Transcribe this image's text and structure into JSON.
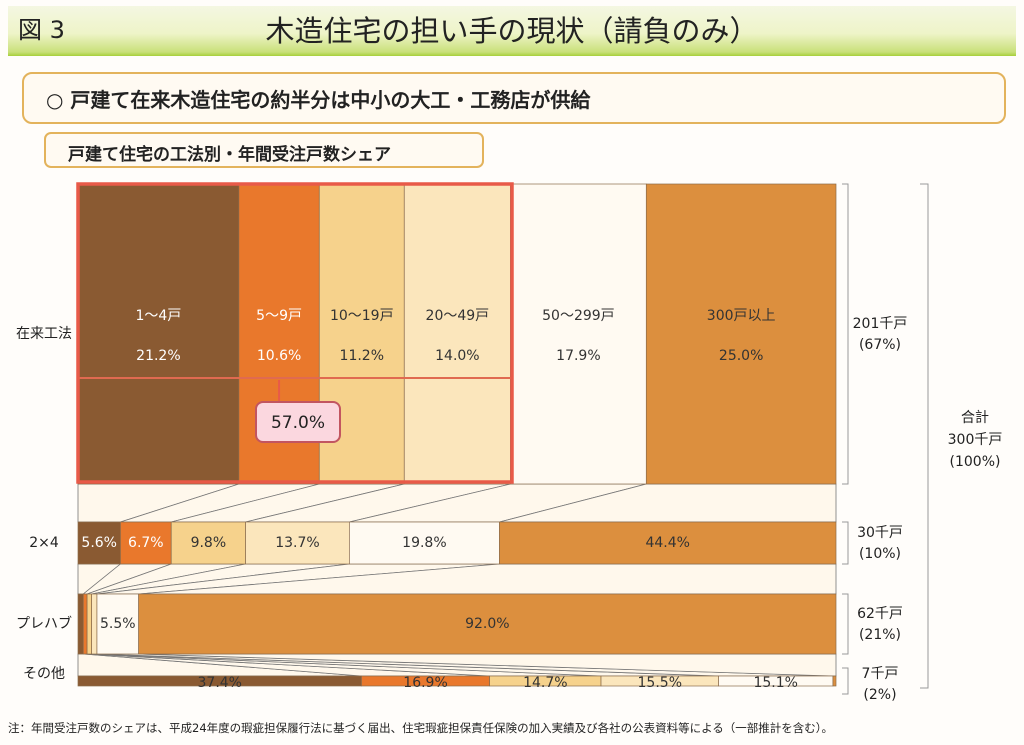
{
  "figure": {
    "number": "図 3",
    "title": "木造住宅の担い手の現状（請負のみ）",
    "headline": "○ 戸建て在来木造住宅の約半分は中小の大工・工務店が供給",
    "subtitle": "戸建て住宅の工法別・年間受注戸数シェア",
    "note": "注：年間受注戸数のシェアは、平成24年度の瑕疵担保履行法に基づく届出、住宅瑕疵担保責任保険の加入実績及び各社の公表資料等による（一部推計を含む）。"
  },
  "colors": {
    "c1": "#8a5a32",
    "c2": "#e9782c",
    "c3": "#f6d28c",
    "c4": "#fbe6bc",
    "c5": "#fffaf2",
    "c6": "#dc8f3e",
    "highlight": "#e85a48"
  },
  "chart_data": {
    "type": "bar",
    "stacked": "100% horizontal",
    "categories": [
      "在来工法",
      "2×4",
      "プレハブ",
      "その他"
    ],
    "series": [
      {
        "name": "1～4戸",
        "values": [
          21.2,
          5.6,
          0.7,
          37.4
        ]
      },
      {
        "name": "5～9戸",
        "values": [
          10.6,
          6.7,
          0.5,
          16.9
        ]
      },
      {
        "name": "10～19戸",
        "values": [
          11.2,
          9.8,
          0.6,
          14.7
        ]
      },
      {
        "name": "20～49戸",
        "values": [
          14.0,
          13.7,
          0.7,
          15.5
        ]
      },
      {
        "name": "50～299戸",
        "values": [
          17.9,
          19.8,
          5.5,
          15.1
        ]
      },
      {
        "name": "300戸以上",
        "values": [
          25.0,
          44.4,
          92.0,
          0.4
        ]
      }
    ],
    "value_labels": [
      [
        "21.2%",
        "10.6%",
        "11.2%",
        "14.0%",
        "17.9%",
        "25.0%"
      ],
      [
        "5.6%",
        "6.7%",
        "9.8%",
        "13.7%",
        "19.8%",
        "44.4%"
      ],
      [
        "",
        "",
        "",
        "",
        "5.5%",
        "92.0%"
      ],
      [
        "37.4%",
        "16.9%",
        "14.7%",
        "15.5%",
        "15.1%",
        ""
      ]
    ],
    "totals": [
      {
        "line1": "201千戸",
        "line2": "(67%)"
      },
      {
        "line1": "30千戸",
        "line2": "(10%)"
      },
      {
        "line1": "62千戸",
        "line2": "(21%)"
      },
      {
        "line1": "7千戸",
        "line2": "(2%)"
      }
    ],
    "grand_total": [
      "合計",
      "300千戸",
      "(100%)"
    ],
    "highlight_value": 57.0,
    "highlight_label": "57.0%",
    "highlight_series": 4
  }
}
